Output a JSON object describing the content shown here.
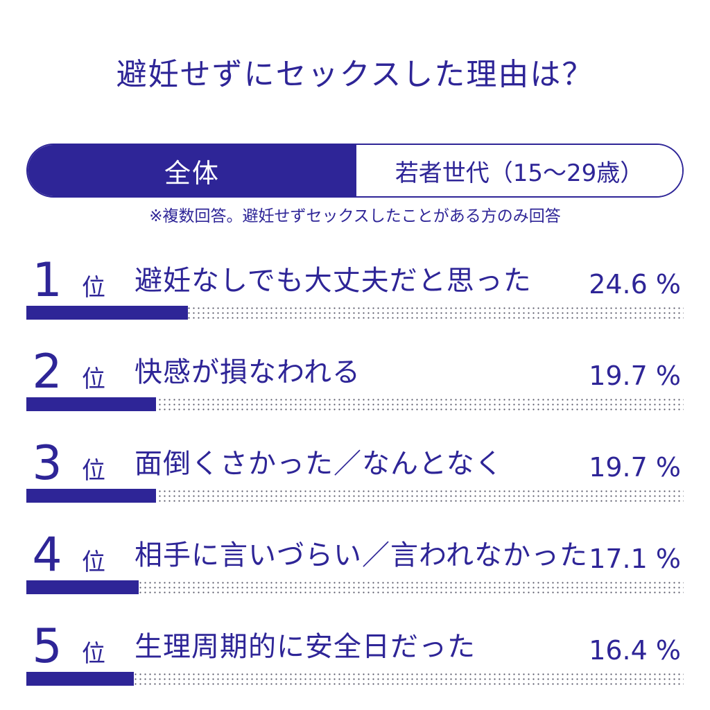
{
  "title": "避妊せずにセックスした理由は？",
  "tabs": [
    {
      "label": "全体",
      "active": true
    },
    {
      "label": "若者世代（15〜29歳）",
      "active": false
    }
  ],
  "note": "※複数回答。避妊せずセックスしたことがある方のみ回答",
  "colors": {
    "accent": "#2e2597",
    "dots": "#555566",
    "background": "#ffffff"
  },
  "rank_suffix": "位",
  "percent_unit": "%",
  "chart_data": {
    "type": "bar",
    "categories": [
      "避妊なしでも大丈夫だと思った",
      "快感が損なわれる",
      "面倒くさかった／なんとなく",
      "相手に言いづらい／言われなかった",
      "生理周期的に安全日だった"
    ],
    "ranks": [
      "1",
      "2",
      "3",
      "4",
      "5"
    ],
    "values": [
      24.6,
      19.7,
      19.7,
      17.1,
      16.4
    ],
    "value_labels": [
      "24.6 %",
      "19.7 %",
      "19.7 %",
      "17.1 %",
      "16.4 %"
    ],
    "title": "避妊せずにセックスした理由は？",
    "xlim": [
      0,
      100
    ],
    "grid": false,
    "legend": "none"
  }
}
